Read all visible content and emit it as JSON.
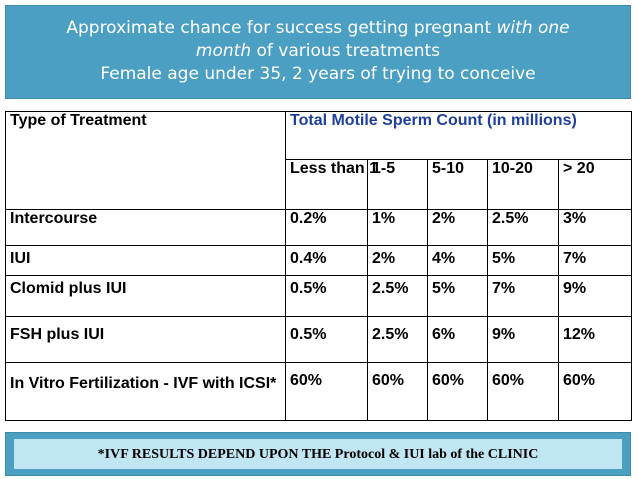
{
  "header": {
    "line1_prefix": "Approximate chance for success getting pregnant ",
    "line1_italic": "with one",
    "line2_italic": "month",
    "line2_suffix": " of various treatments",
    "line3": "Female age under 35, 2 years of trying to conceive"
  },
  "table": {
    "type_header": "Type of Treatment",
    "tmsc_header": "Total Motile Sperm Count (in millions)",
    "sub_headers": [
      "Less than 1",
      "1-5",
      "5-10",
      "10-20",
      "> 20"
    ],
    "rows": [
      {
        "treatment": "Intercourse",
        "values": [
          "0.2%",
          "1%",
          "2%",
          "2.5%",
          "3%"
        ]
      },
      {
        "treatment": "IUI",
        "values": [
          "0.4%",
          "2%",
          "4%",
          "5%",
          "7%"
        ]
      },
      {
        "treatment": "Clomid plus IUI",
        "values": [
          "0.5%",
          "2.5%",
          "5%",
          "7%",
          "9%"
        ]
      },
      {
        "treatment": "FSH plus IUI",
        "values": [
          "0.5%",
          "2.5%",
          "6%",
          "9%",
          "12%"
        ]
      },
      {
        "treatment": "In Vitro Fertilization - IVF with ICSI*",
        "values": [
          "60%",
          "60%",
          "60%",
          "60%",
          "60%"
        ]
      }
    ]
  },
  "footer": {
    "note": "*IVF RESULTS DEPEND UPON THE  Protocol & IUI lab of the CLINIC"
  },
  "colors": {
    "banner": "#4a9fc3",
    "footer_inner": "#bfe6f2",
    "tmsc_header_text": "#1e3f9a"
  }
}
